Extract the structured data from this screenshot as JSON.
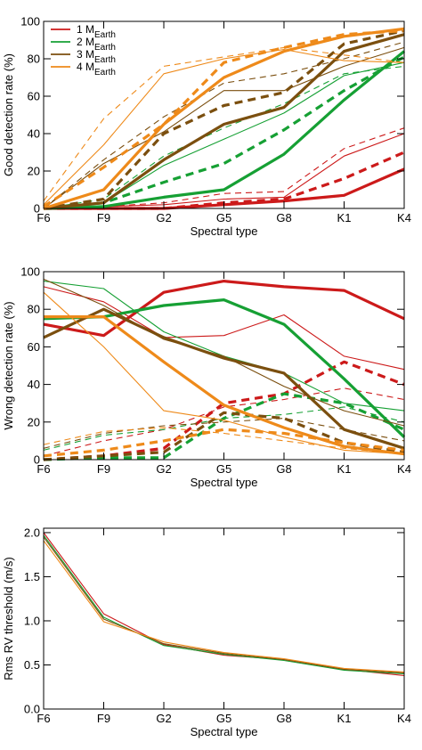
{
  "chart_data": [
    {
      "type": "line",
      "categories": [
        "F6",
        "F9",
        "G2",
        "G5",
        "G8",
        "K1",
        "K4"
      ],
      "xlabel": "Spectral type",
      "ylabel": "Good detection rate (%)",
      "ylim": [
        0,
        100
      ],
      "yticks": [
        0,
        20,
        40,
        60,
        80,
        100
      ],
      "legend": {
        "placement": "top-left",
        "entries": [
          {
            "prefix": "1 M",
            "sub": "Earth",
            "color": "#cc1a1a"
          },
          {
            "prefix": "2 M",
            "sub": "Earth",
            "color": "#16a034"
          },
          {
            "prefix": "3 M",
            "sub": "Earth",
            "color": "#7b4f0f"
          },
          {
            "prefix": "4 M",
            "sub": "Earth",
            "color": "#ee8a1a"
          }
        ]
      },
      "series": [
        {
          "color": "#cc1a1a",
          "style": "thick",
          "values": [
            0,
            0,
            0,
            2,
            4,
            7,
            21
          ]
        },
        {
          "color": "#cc1a1a",
          "style": "thick-dash",
          "values": [
            0,
            0,
            0,
            3,
            5,
            16,
            30
          ]
        },
        {
          "color": "#cc1a1a",
          "style": "thin",
          "values": [
            0,
            1,
            2,
            5,
            6,
            28,
            40
          ]
        },
        {
          "color": "#cc1a1a",
          "style": "thin-dash",
          "values": [
            0,
            1,
            3,
            8,
            9,
            32,
            43
          ]
        },
        {
          "color": "#16a034",
          "style": "thick",
          "values": [
            0,
            1,
            6,
            10,
            29,
            58,
            84
          ]
        },
        {
          "color": "#16a034",
          "style": "thick-dash",
          "values": [
            0,
            3,
            14,
            24,
            42,
            63,
            81
          ]
        },
        {
          "color": "#16a034",
          "style": "thin",
          "values": [
            0,
            3,
            23,
            37,
            51,
            71,
            78
          ]
        },
        {
          "color": "#16a034",
          "style": "thin-dash",
          "values": [
            0,
            5,
            28,
            43,
            56,
            72,
            76
          ]
        },
        {
          "color": "#7b4f0f",
          "style": "thick",
          "values": [
            0,
            3,
            26,
            45,
            54,
            84,
            93
          ]
        },
        {
          "color": "#7b4f0f",
          "style": "thick-dash",
          "values": [
            0,
            5,
            40,
            55,
            62,
            88,
            95
          ]
        },
        {
          "color": "#7b4f0f",
          "style": "thin",
          "values": [
            0,
            24,
            41,
            63,
            63,
            76,
            86
          ]
        },
        {
          "color": "#7b4f0f",
          "style": "thin-dash",
          "values": [
            0,
            26,
            49,
            67,
            72,
            80,
            89
          ]
        },
        {
          "color": "#ee8a1a",
          "style": "thick",
          "values": [
            0,
            10,
            45,
            70,
            84,
            92,
            96
          ]
        },
        {
          "color": "#ee8a1a",
          "style": "thick-dash",
          "values": [
            1,
            22,
            45,
            78,
            86,
            93,
            95
          ]
        },
        {
          "color": "#ee8a1a",
          "style": "thin",
          "values": [
            2,
            34,
            72,
            80,
            85,
            79,
            78
          ]
        },
        {
          "color": "#ee8a1a",
          "style": "thin-dash",
          "values": [
            4,
            48,
            76,
            81,
            86,
            82,
            78
          ]
        }
      ]
    },
    {
      "type": "line",
      "categories": [
        "F6",
        "F9",
        "G2",
        "G5",
        "G8",
        "K1",
        "K4"
      ],
      "xlabel": "Spectral type",
      "ylabel": "Wrong detection rate (%)",
      "ylim": [
        0,
        100
      ],
      "yticks": [
        0,
        20,
        40,
        60,
        80,
        100
      ],
      "series": [
        {
          "color": "#cc1a1a",
          "style": "thick",
          "values": [
            72,
            66,
            89,
            95,
            92,
            90,
            75
          ]
        },
        {
          "color": "#cc1a1a",
          "style": "thick-dash",
          "values": [
            0,
            2,
            6,
            30,
            35,
            52,
            40
          ]
        },
        {
          "color": "#cc1a1a",
          "style": "thin",
          "values": [
            92,
            84,
            65,
            66,
            77,
            55,
            48
          ]
        },
        {
          "color": "#cc1a1a",
          "style": "thin-dash",
          "values": [
            2,
            10,
            16,
            28,
            32,
            38,
            32
          ]
        },
        {
          "color": "#16a034",
          "style": "thick",
          "values": [
            75,
            76,
            82,
            85,
            72,
            43,
            12
          ]
        },
        {
          "color": "#16a034",
          "style": "thick-dash",
          "values": [
            0,
            1,
            1,
            22,
            35,
            30,
            16
          ]
        },
        {
          "color": "#16a034",
          "style": "thin",
          "values": [
            95,
            91,
            68,
            55,
            46,
            30,
            26
          ]
        },
        {
          "color": "#16a034",
          "style": "thin-dash",
          "values": [
            5,
            13,
            16,
            22,
            24,
            28,
            20
          ]
        },
        {
          "color": "#7b4f0f",
          "style": "thick",
          "values": [
            65,
            80,
            65,
            54,
            46,
            16,
            6
          ]
        },
        {
          "color": "#7b4f0f",
          "style": "thick-dash",
          "values": [
            0,
            2,
            4,
            25,
            22,
            9,
            4
          ]
        },
        {
          "color": "#7b4f0f",
          "style": "thin",
          "values": [
            96,
            82,
            64,
            55,
            39,
            26,
            18
          ]
        },
        {
          "color": "#7b4f0f",
          "style": "thin-dash",
          "values": [
            6,
            14,
            18,
            20,
            22,
            16,
            10
          ]
        },
        {
          "color": "#ee8a1a",
          "style": "thick",
          "values": [
            76,
            76,
            52,
            29,
            17,
            7,
            3
          ]
        },
        {
          "color": "#ee8a1a",
          "style": "thick-dash",
          "values": [
            2,
            5,
            10,
            16,
            14,
            9,
            5
          ]
        },
        {
          "color": "#ee8a1a",
          "style": "thin",
          "values": [
            89,
            60,
            26,
            21,
            12,
            5,
            3
          ]
        },
        {
          "color": "#ee8a1a",
          "style": "thin-dash",
          "values": [
            8,
            15,
            17,
            14,
            10,
            6,
            3
          ]
        }
      ]
    },
    {
      "type": "line",
      "categories": [
        "F6",
        "F9",
        "G2",
        "G5",
        "G8",
        "K1",
        "K4"
      ],
      "xlabel": "Spectral type",
      "ylabel": "Rms RV threshold (m/s)",
      "ylim": [
        0,
        2.05
      ],
      "yticks": [
        0.0,
        0.5,
        1.0,
        1.5,
        2.0
      ],
      "ytick_labels": [
        "0.0",
        "0.5",
        "1.0",
        "1.5",
        "2.0"
      ],
      "series": [
        {
          "color": "#cc1a1a",
          "style": "thin",
          "values": [
            2.0,
            1.08,
            0.73,
            0.61,
            0.56,
            0.45,
            0.38
          ]
        },
        {
          "color": "#16a034",
          "style": "thin",
          "values": [
            1.97,
            1.04,
            0.72,
            0.62,
            0.55,
            0.44,
            0.4
          ]
        },
        {
          "color": "#7b4f0f",
          "style": "thin",
          "values": [
            1.95,
            1.02,
            0.74,
            0.63,
            0.56,
            0.45,
            0.41
          ]
        },
        {
          "color": "#ee8a1a",
          "style": "thin",
          "values": [
            1.91,
            0.99,
            0.76,
            0.64,
            0.57,
            0.46,
            0.42
          ]
        }
      ]
    }
  ]
}
